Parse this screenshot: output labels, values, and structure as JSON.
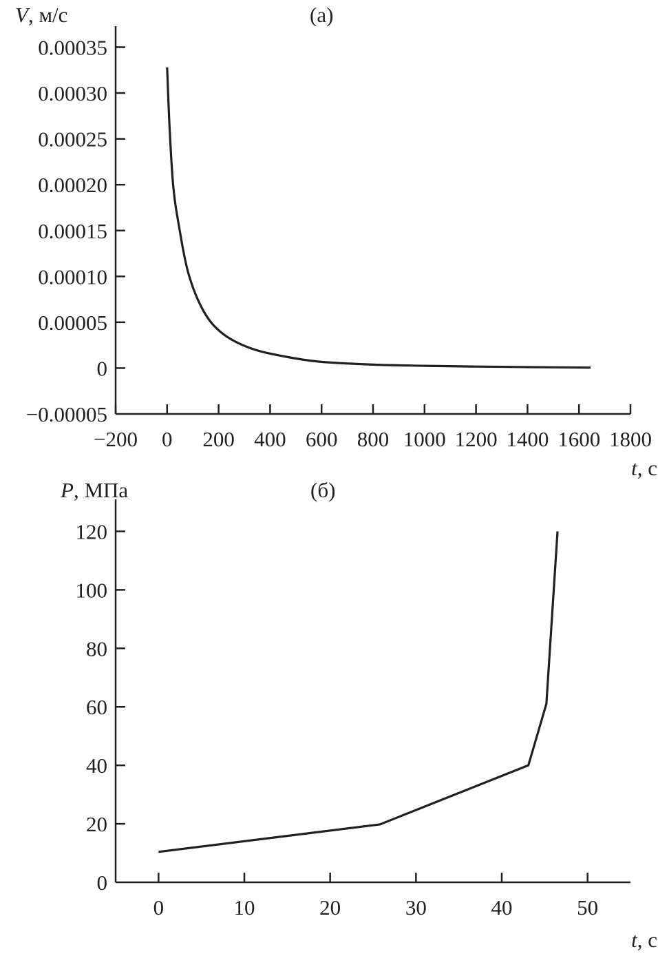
{
  "chart_data": [
    {
      "type": "line",
      "title": "(а)",
      "ylabel_var": "V",
      "ylabel_unit": ", м/с",
      "xlabel_var": "t",
      "xlabel_unit": ", с",
      "xlim": [
        -200,
        1800
      ],
      "ylim": [
        -5e-05,
        0.00035
      ],
      "grid": false,
      "xticks": [
        -200,
        0,
        200,
        400,
        600,
        800,
        1000,
        1200,
        1400,
        1600,
        1800
      ],
      "xtick_labels": [
        "−200",
        "0",
        "200",
        "400",
        "600",
        "800",
        "1000",
        "1200",
        "1400",
        "1600",
        "1800"
      ],
      "yticks": [
        -5e-05,
        0,
        5e-05,
        0.0001,
        0.00015,
        0.0002,
        0.00025,
        0.0003,
        0.00035
      ],
      "ytick_labels": [
        "−0.00005",
        "0",
        "0.00005",
        "0.00010",
        "0.00015",
        "0.00020",
        "0.00025",
        "0.00030",
        "0.00035"
      ],
      "x": [
        0,
        10,
        24,
        46,
        83,
        142,
        214,
        321,
        450,
        592,
        800,
        1000,
        1200,
        1400,
        1645
      ],
      "y": [
        0.000328,
        0.00026,
        0.000198,
        0.000155,
        0.000103,
        6.2e-05,
        3.8e-05,
        2.2e-05,
        1.3e-05,
        7e-06,
        3.8e-06,
        2.5e-06,
        1.7e-06,
        1.1e-06,
        5e-07
      ]
    },
    {
      "type": "line",
      "title": "(б)",
      "ylabel_var": "P",
      "ylabel_unit": ", МПа",
      "xlabel_var": "t",
      "xlabel_unit": ", с",
      "xlim": [
        -5,
        55
      ],
      "ylim": [
        0,
        130
      ],
      "grid": false,
      "xticks": [
        0,
        10,
        20,
        30,
        40,
        50
      ],
      "xtick_labels": [
        "0",
        "10",
        "20",
        "30",
        "40",
        "50"
      ],
      "yticks": [
        0,
        20,
        40,
        60,
        80,
        100,
        120
      ],
      "ytick_labels": [
        "0",
        "20",
        "40",
        "60",
        "80",
        "100",
        "120"
      ],
      "x": [
        0,
        25.8,
        43.1,
        45.2,
        46.5
      ],
      "y": [
        10.4,
        19.8,
        40,
        61,
        120
      ]
    }
  ]
}
